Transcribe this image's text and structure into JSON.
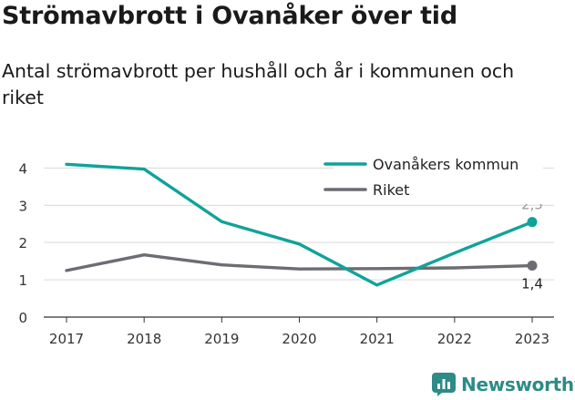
{
  "title": "Strömavbrott i Ovanåker över tid",
  "subtitle": "Antal strömavbrott per hushåll och år i kommunen och riket",
  "brand": {
    "name": "Newsworthy",
    "icon": "bar-chart-icon"
  },
  "chart_data": {
    "type": "line",
    "categories": [
      "2017",
      "2018",
      "2019",
      "2020",
      "2021",
      "2022",
      "2023"
    ],
    "series": [
      {
        "name": "Ovanåkers kommun",
        "color": "#0fa39a",
        "values": [
          4.1,
          3.97,
          2.56,
          1.96,
          0.86,
          1.72,
          2.55
        ],
        "end_label": "2,5"
      },
      {
        "name": "Riket",
        "color": "#6d6c72",
        "values": [
          1.25,
          1.67,
          1.4,
          1.29,
          1.3,
          1.32,
          1.38
        ],
        "end_label": "1,4"
      }
    ],
    "yticks": [
      "0",
      "1",
      "2",
      "3",
      "4"
    ],
    "ylim": [
      0,
      4.4
    ],
    "grid": true,
    "legend": "top-right",
    "xlabel": "",
    "ylabel": ""
  }
}
